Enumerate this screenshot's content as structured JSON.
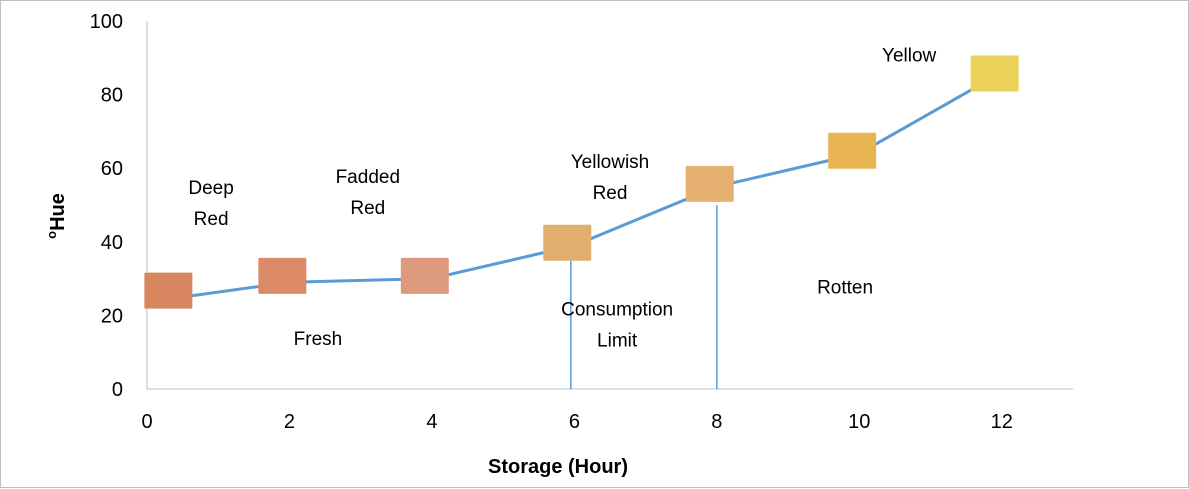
{
  "chart_data": {
    "type": "line",
    "xlabel": "Storage (Hour)",
    "ylabel_superscript": "o",
    "ylabel": "Hue",
    "xlim": [
      0,
      13
    ],
    "ylim": [
      0,
      100
    ],
    "x_ticks": [
      0,
      2,
      4,
      6,
      8,
      10,
      12
    ],
    "y_ticks": [
      0,
      20,
      40,
      60,
      80,
      100
    ],
    "grid": false,
    "legend": "none",
    "series": [
      {
        "x": [
          0,
          0.5,
          2,
          4,
          6,
          8,
          10,
          12
        ],
        "y": [
          24,
          25,
          29,
          30,
          39,
          55,
          64,
          86
        ],
        "color": "#5b9bd5"
      }
    ],
    "sample_patches": [
      {
        "x": 0.3,
        "y": 27,
        "color": "#d7865f"
      },
      {
        "x": 1.9,
        "y": 31,
        "color": "#dc8a66"
      },
      {
        "x": 3.9,
        "y": 31,
        "color": "#dd9a7c"
      },
      {
        "x": 5.9,
        "y": 40,
        "color": "#e2ae6d"
      },
      {
        "x": 7.9,
        "y": 56,
        "color": "#e6b070"
      },
      {
        "x": 9.9,
        "y": 65,
        "color": "#e8b552"
      },
      {
        "x": 11.9,
        "y": 86,
        "color": "#ead25a"
      }
    ],
    "vertical_lines": [
      {
        "x": 5.95,
        "y_top": 37
      },
      {
        "x": 8.0,
        "y_top": 50
      }
    ],
    "annotations": [
      {
        "lines": [
          "Deep",
          "Red"
        ],
        "x": 0.9,
        "y": 53
      },
      {
        "lines": [
          "Fadded",
          "Red"
        ],
        "x": 3.1,
        "y": 56
      },
      {
        "lines": [
          "Yellowish",
          "Red"
        ],
        "x": 6.5,
        "y": 60
      },
      {
        "lines": [
          "Yellow"
        ],
        "x": 10.7,
        "y": 89
      },
      {
        "lines": [
          "Fresh"
        ],
        "x": 2.4,
        "y": 12
      },
      {
        "lines": [
          "Consumption",
          "Limit"
        ],
        "x": 6.6,
        "y": 20
      },
      {
        "lines": [
          "Rotten"
        ],
        "x": 9.8,
        "y": 26
      }
    ]
  }
}
